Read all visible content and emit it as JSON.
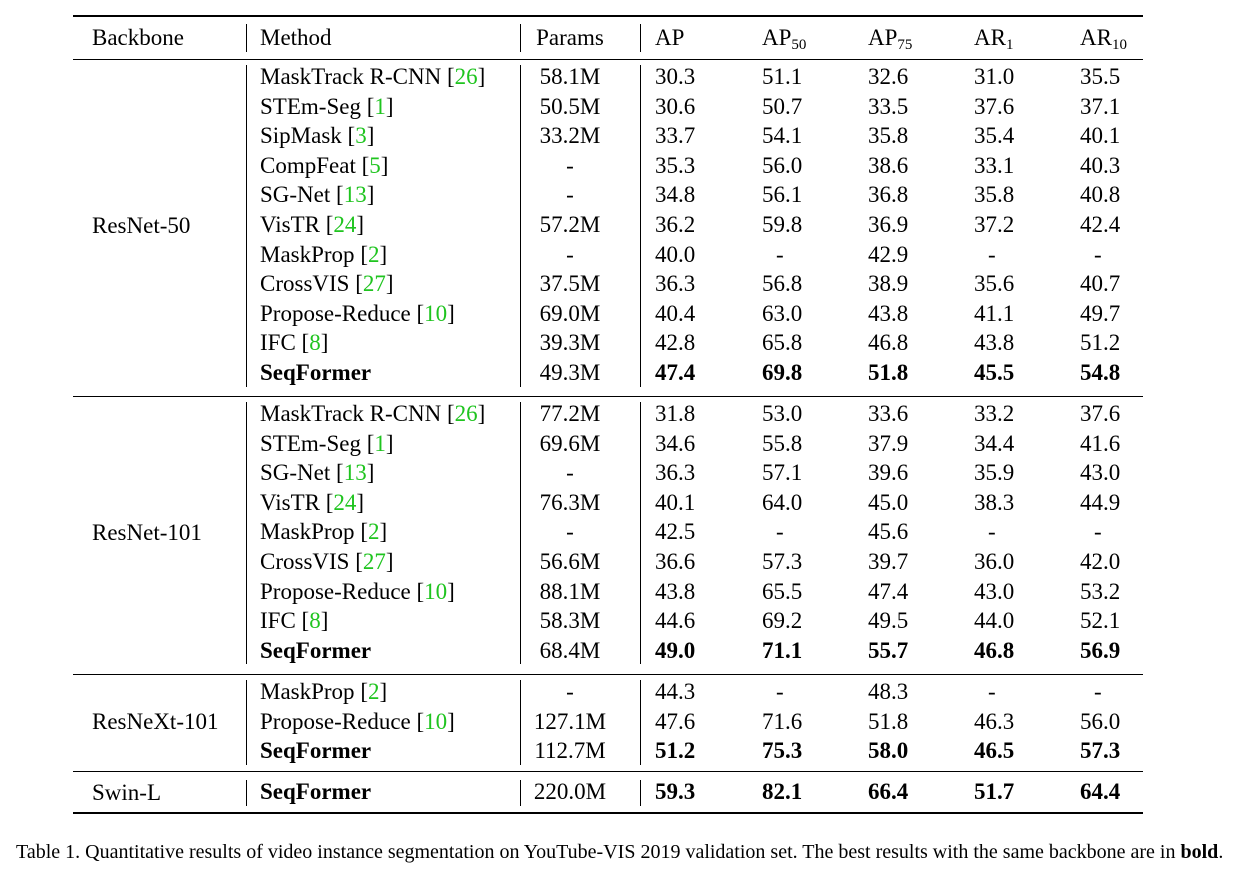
{
  "headers": {
    "backbone": "Backbone",
    "method": "Method",
    "params": "Params",
    "ap": "AP",
    "ap50_base": "AP",
    "ap50_sub": "50",
    "ap75_base": "AP",
    "ap75_sub": "75",
    "ar1_base": "AR",
    "ar1_sub": "1",
    "ar10_base": "AR",
    "ar10_sub": "10"
  },
  "groups": [
    {
      "backbone": "ResNet-50",
      "rows": [
        {
          "name": "MaskTrack R-CNN",
          "cite": "26",
          "params": "58.1M",
          "ap": "30.3",
          "ap50": "51.1",
          "ap75": "32.6",
          "ar1": "31.0",
          "ar10": "35.5",
          "bold": false
        },
        {
          "name": "STEm-Seg",
          "cite": "1",
          "params": "50.5M",
          "ap": "30.6",
          "ap50": "50.7",
          "ap75": "33.5",
          "ar1": "37.6",
          "ar10": "37.1",
          "bold": false
        },
        {
          "name": "SipMask",
          "cite": "3",
          "params": "33.2M",
          "ap": "33.7",
          "ap50": "54.1",
          "ap75": "35.8",
          "ar1": "35.4",
          "ar10": "40.1",
          "bold": false
        },
        {
          "name": "CompFeat",
          "cite": "5",
          "params": "-",
          "ap": "35.3",
          "ap50": "56.0",
          "ap75": "38.6",
          "ar1": "33.1",
          "ar10": "40.3",
          "bold": false
        },
        {
          "name": "SG-Net",
          "cite": "13",
          "params": "-",
          "ap": "34.8",
          "ap50": "56.1",
          "ap75": "36.8",
          "ar1": "35.8",
          "ar10": "40.8",
          "bold": false
        },
        {
          "name": "VisTR",
          "cite": "24",
          "params": "57.2M",
          "ap": "36.2",
          "ap50": "59.8",
          "ap75": "36.9",
          "ar1": "37.2",
          "ar10": "42.4",
          "bold": false
        },
        {
          "name": "MaskProp",
          "cite": "2",
          "params": "-",
          "ap": "40.0",
          "ap50": "-",
          "ap75": "42.9",
          "ar1": "-",
          "ar10": "-",
          "bold": false
        },
        {
          "name": "CrossVIS",
          "cite": "27",
          "params": "37.5M",
          "ap": "36.3",
          "ap50": "56.8",
          "ap75": "38.9",
          "ar1": "35.6",
          "ar10": "40.7",
          "bold": false
        },
        {
          "name": "Propose-Reduce",
          "cite": "10",
          "params": "69.0M",
          "ap": "40.4",
          "ap50": "63.0",
          "ap75": "43.8",
          "ar1": "41.1",
          "ar10": "49.7",
          "bold": false
        },
        {
          "name": "IFC",
          "cite": "8",
          "params": "39.3M",
          "ap": "42.8",
          "ap50": "65.8",
          "ap75": "46.8",
          "ar1": "43.8",
          "ar10": "51.2",
          "bold": false
        },
        {
          "name": "SeqFormer",
          "cite": "",
          "params": "49.3M",
          "ap": "47.4",
          "ap50": "69.8",
          "ap75": "51.8",
          "ar1": "45.5",
          "ar10": "54.8",
          "bold": true
        }
      ]
    },
    {
      "backbone": "ResNet-101",
      "rows": [
        {
          "name": "MaskTrack R-CNN",
          "cite": "26",
          "params": "77.2M",
          "ap": "31.8",
          "ap50": "53.0",
          "ap75": "33.6",
          "ar1": "33.2",
          "ar10": "37.6",
          "bold": false
        },
        {
          "name": "STEm-Seg",
          "cite": "1",
          "params": "69.6M",
          "ap": "34.6",
          "ap50": "55.8",
          "ap75": "37.9",
          "ar1": "34.4",
          "ar10": "41.6",
          "bold": false
        },
        {
          "name": "SG-Net",
          "cite": "13",
          "params": "-",
          "ap": "36.3",
          "ap50": "57.1",
          "ap75": "39.6",
          "ar1": "35.9",
          "ar10": "43.0",
          "bold": false
        },
        {
          "name": "VisTR",
          "cite": "24",
          "params": "76.3M",
          "ap": "40.1",
          "ap50": "64.0",
          "ap75": "45.0",
          "ar1": "38.3",
          "ar10": "44.9",
          "bold": false
        },
        {
          "name": "MaskProp",
          "cite": "2",
          "params": "-",
          "ap": "42.5",
          "ap50": "-",
          "ap75": "45.6",
          "ar1": "-",
          "ar10": "-",
          "bold": false
        },
        {
          "name": "CrossVIS",
          "cite": "27",
          "params": "56.6M",
          "ap": "36.6",
          "ap50": "57.3",
          "ap75": "39.7",
          "ar1": "36.0",
          "ar10": "42.0",
          "bold": false
        },
        {
          "name": "Propose-Reduce",
          "cite": "10",
          "params": "88.1M",
          "ap": "43.8",
          "ap50": "65.5",
          "ap75": "47.4",
          "ar1": "43.0",
          "ar10": "53.2",
          "bold": false
        },
        {
          "name": "IFC",
          "cite": "8",
          "params": "58.3M",
          "ap": "44.6",
          "ap50": "69.2",
          "ap75": "49.5",
          "ar1": "44.0",
          "ar10": "52.1",
          "bold": false
        },
        {
          "name": "SeqFormer",
          "cite": "",
          "params": "68.4M",
          "ap": "49.0",
          "ap50": "71.1",
          "ap75": "55.7",
          "ar1": "46.8",
          "ar10": "56.9",
          "bold": true
        }
      ]
    },
    {
      "backbone": "ResNeXt-101",
      "rows": [
        {
          "name": "MaskProp",
          "cite": "2",
          "params": "-",
          "ap": "44.3",
          "ap50": "-",
          "ap75": "48.3",
          "ar1": "-",
          "ar10": "-",
          "bold": false
        },
        {
          "name": "Propose-Reduce",
          "cite": "10",
          "params": "127.1M",
          "ap": "47.6",
          "ap50": "71.6",
          "ap75": "51.8",
          "ar1": "46.3",
          "ar10": "56.0",
          "bold": false
        },
        {
          "name": "SeqFormer",
          "cite": "",
          "params": "112.7M",
          "ap": "51.2",
          "ap50": "75.3",
          "ap75": "58.0",
          "ar1": "46.5",
          "ar10": "57.3",
          "bold": true
        }
      ]
    },
    {
      "backbone": "Swin-L",
      "rows": [
        {
          "name": "SeqFormer",
          "cite": "",
          "params": "220.0M",
          "ap": "59.3",
          "ap50": "82.1",
          "ap75": "66.4",
          "ar1": "51.7",
          "ar10": "64.4",
          "bold": true
        }
      ]
    }
  ],
  "caption": {
    "prefix": "Table 1. Quantitative results of video instance segmentation on YouTube-VIS 2019 validation set. The best results with the same backbone are in ",
    "bold_word": "bold",
    "suffix": "."
  },
  "colors": {
    "cite": "#1fc41f"
  }
}
